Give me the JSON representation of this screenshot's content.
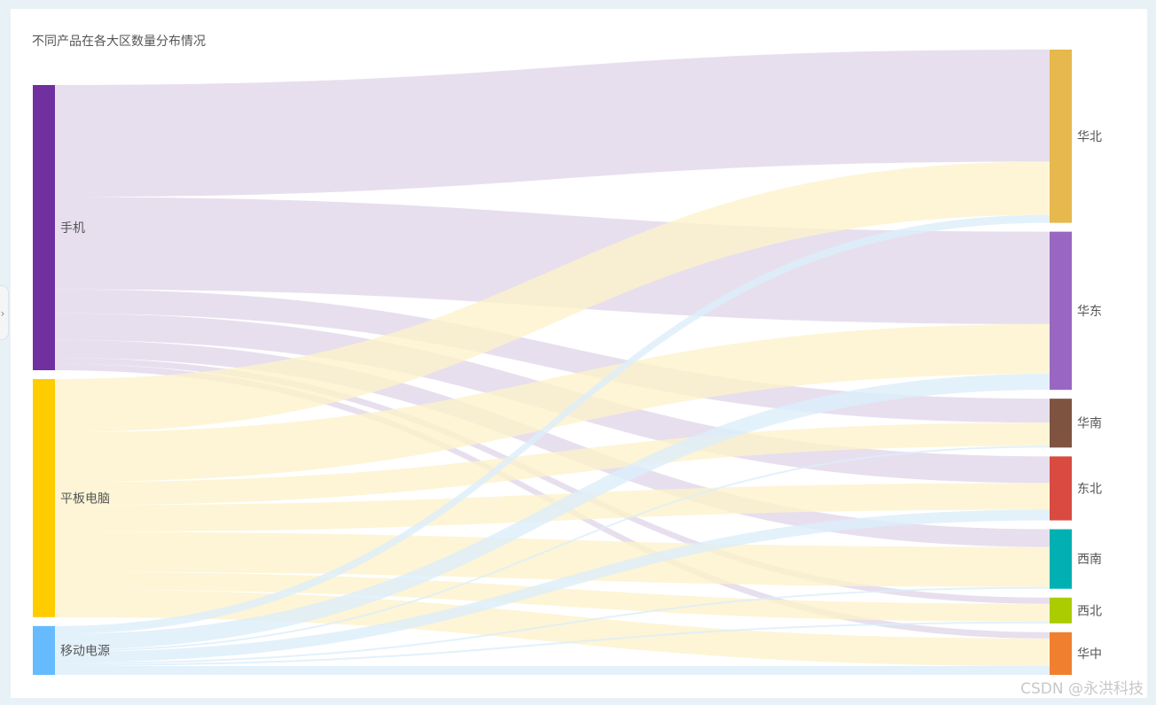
{
  "title": "不同产品在各大区数量分布情况",
  "watermark": "CSDN @永洪科技",
  "side_toggle": {
    "icon": "chevron-right-icon",
    "glyph": "›"
  },
  "chart_data": {
    "type": "sankey",
    "title": "不同产品在各大区数量分布情况",
    "sources": [
      {
        "name": "手机",
        "color": "#7030a0",
        "link_color": "#e1d7ea"
      },
      {
        "name": "平板电脑",
        "color": "#ffcc00",
        "link_color": "#fdf2cc"
      },
      {
        "name": "移动电源",
        "color": "#66bbff",
        "link_color": "#dcedfa"
      }
    ],
    "targets": [
      {
        "name": "华北",
        "color": "#e6b84d"
      },
      {
        "name": "华东",
        "color": "#9966c2"
      },
      {
        "name": "华南",
        "color": "#7e5340"
      },
      {
        "name": "东北",
        "color": "#d94a40"
      },
      {
        "name": "西南",
        "color": "#00b0b3"
      },
      {
        "name": "西北",
        "color": "#aacc00"
      },
      {
        "name": "华中",
        "color": "#f08030"
      }
    ],
    "links": [
      {
        "source": "手机",
        "target": "华北",
        "value": 126
      },
      {
        "source": "手机",
        "target": "华东",
        "value": 104
      },
      {
        "source": "手机",
        "target": "华南",
        "value": 27
      },
      {
        "source": "手机",
        "target": "东北",
        "value": 30
      },
      {
        "source": "手机",
        "target": "西南",
        "value": 20
      },
      {
        "source": "手机",
        "target": "西北",
        "value": 7
      },
      {
        "source": "手机",
        "target": "华中",
        "value": 7
      },
      {
        "source": "平板电脑",
        "target": "华北",
        "value": 60
      },
      {
        "source": "平板电脑",
        "target": "华东",
        "value": 56
      },
      {
        "source": "平板电脑",
        "target": "华南",
        "value": 26
      },
      {
        "source": "平板电脑",
        "target": "东北",
        "value": 30
      },
      {
        "source": "平板电脑",
        "target": "西南",
        "value": 45
      },
      {
        "source": "平板电脑",
        "target": "西北",
        "value": 20
      },
      {
        "source": "平板电脑",
        "target": "华中",
        "value": 31
      },
      {
        "source": "移动电源",
        "target": "华北",
        "value": 9
      },
      {
        "source": "移动电源",
        "target": "华东",
        "value": 18
      },
      {
        "source": "移动电源",
        "target": "华南",
        "value": 2
      },
      {
        "source": "移动电源",
        "target": "东北",
        "value": 12
      },
      {
        "source": "移动电源",
        "target": "西南",
        "value": 2
      },
      {
        "source": "移动电源",
        "target": "西北",
        "value": 2
      },
      {
        "source": "移动电源",
        "target": "华中",
        "value": 10
      }
    ]
  }
}
